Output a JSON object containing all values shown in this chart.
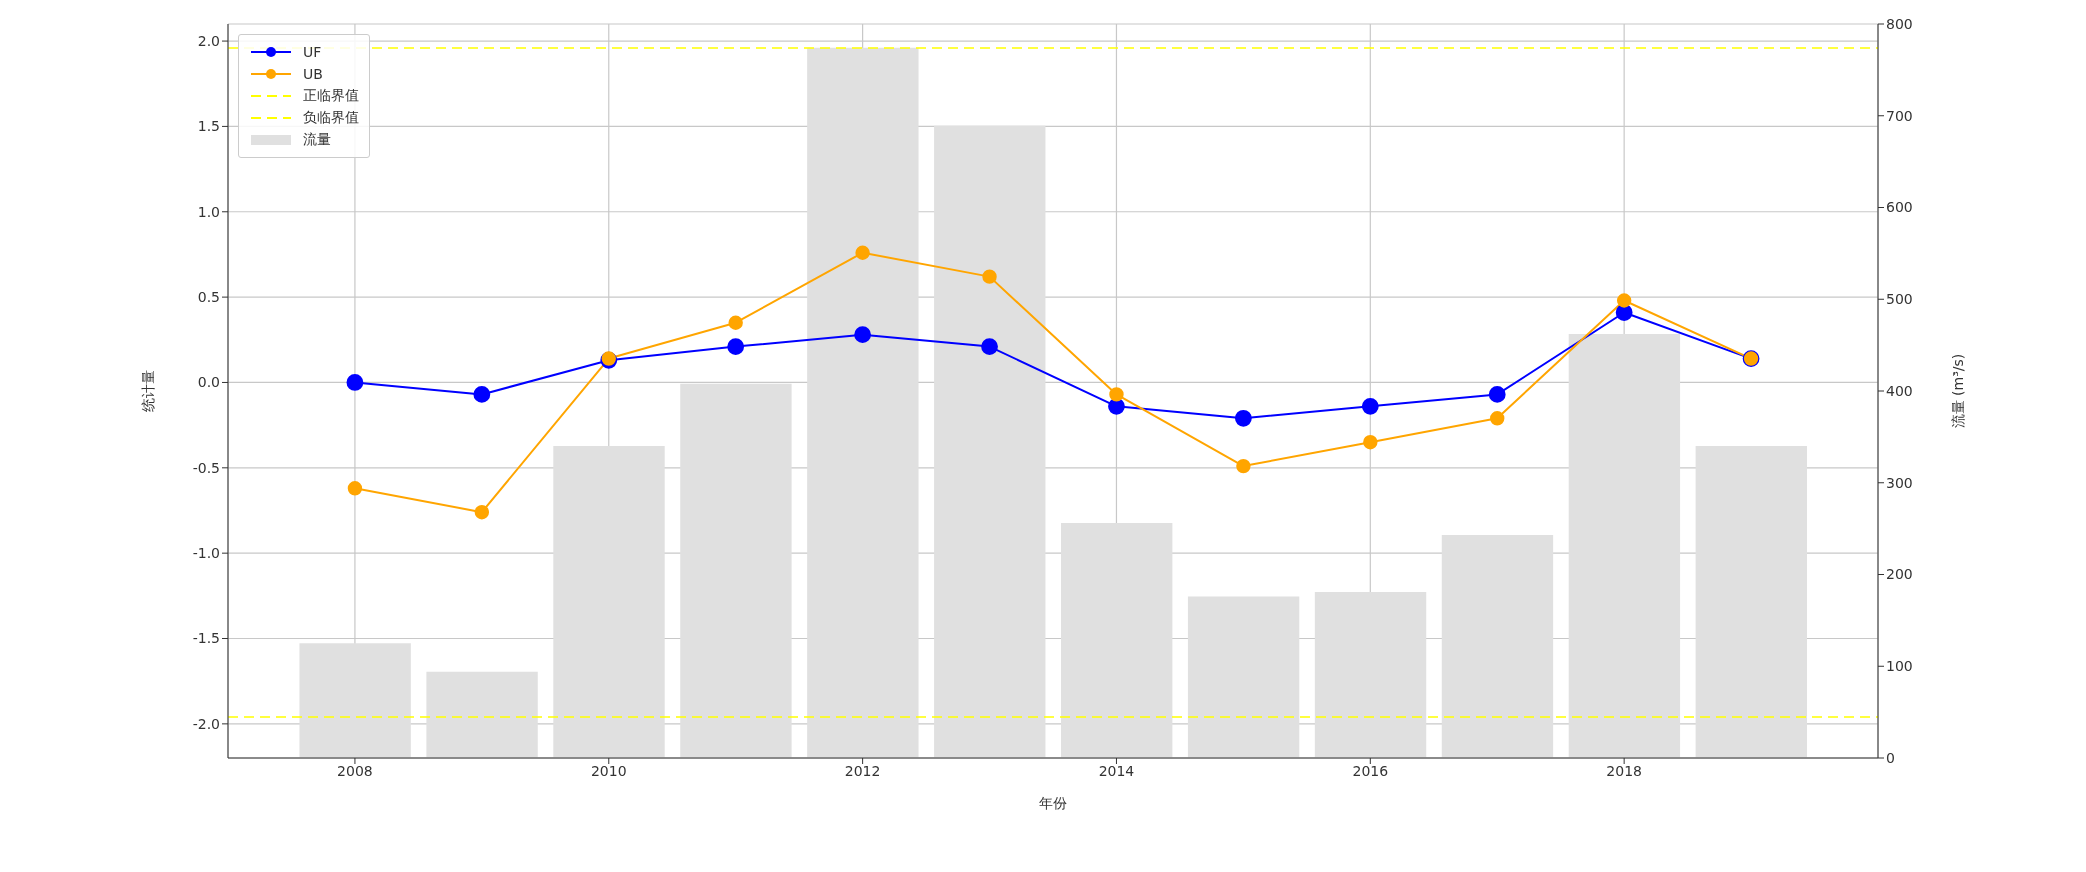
{
  "chart_data": {
    "type": "line",
    "xlabel": "年份",
    "ylabel": "统计量",
    "y2label": "流量 (m³/s)",
    "x": [
      2008,
      2009,
      2010,
      2011,
      2012,
      2013,
      2014,
      2015,
      2016,
      2017,
      2018,
      2019
    ],
    "series": [
      {
        "name": "UF",
        "color": "#0000ff",
        "values": [
          0,
          -0.07,
          0.13,
          0.21,
          0.28,
          0.21,
          -0.14,
          -0.21,
          -0.14,
          -0.07,
          0.41,
          0.14
        ]
      },
      {
        "name": "UB",
        "color": "#ffa500",
        "values": [
          -0.62,
          -0.76,
          0.14,
          0.35,
          0.76,
          0.62,
          -0.07,
          -0.49,
          -0.35,
          -0.21,
          0.48,
          0.14
        ]
      },
      {
        "name": "流量",
        "type": "bar",
        "axis": "y2",
        "color": "#e0e0e0",
        "values": [
          125,
          94,
          340,
          408,
          774,
          689,
          256,
          176,
          181,
          243,
          462,
          340
        ]
      }
    ],
    "ref_lines": [
      {
        "axis": "y",
        "value": 1.96,
        "label": "正临界值",
        "color": "#ffff00",
        "line_style": "dashed"
      },
      {
        "axis": "y",
        "value": -1.96,
        "label": "负临界值",
        "color": "#ffff00",
        "line_style": "dashed"
      }
    ],
    "xlim": [
      2007,
      2020
    ],
    "xticks": [
      2008,
      2010,
      2012,
      2014,
      2016,
      2018
    ],
    "ylim": [
      -2.2,
      2.1
    ],
    "yticks": [
      {
        "value": -2,
        "label": "-2.0"
      },
      -1.5,
      {
        "value": -1,
        "label": "-1.0"
      },
      -0.5,
      {
        "value": 0,
        "label": "0.0"
      },
      0.5,
      {
        "value": 1,
        "label": "1.0"
      },
      1.5,
      {
        "value": 2,
        "label": "2.0"
      }
    ],
    "y2lim": [
      0,
      800
    ],
    "y2ticks": [
      0,
      100,
      200,
      300,
      400,
      500,
      600,
      700,
      800
    ],
    "grid": true,
    "legend": "top left",
    "marker": "circle",
    "line_style": "solid"
  }
}
